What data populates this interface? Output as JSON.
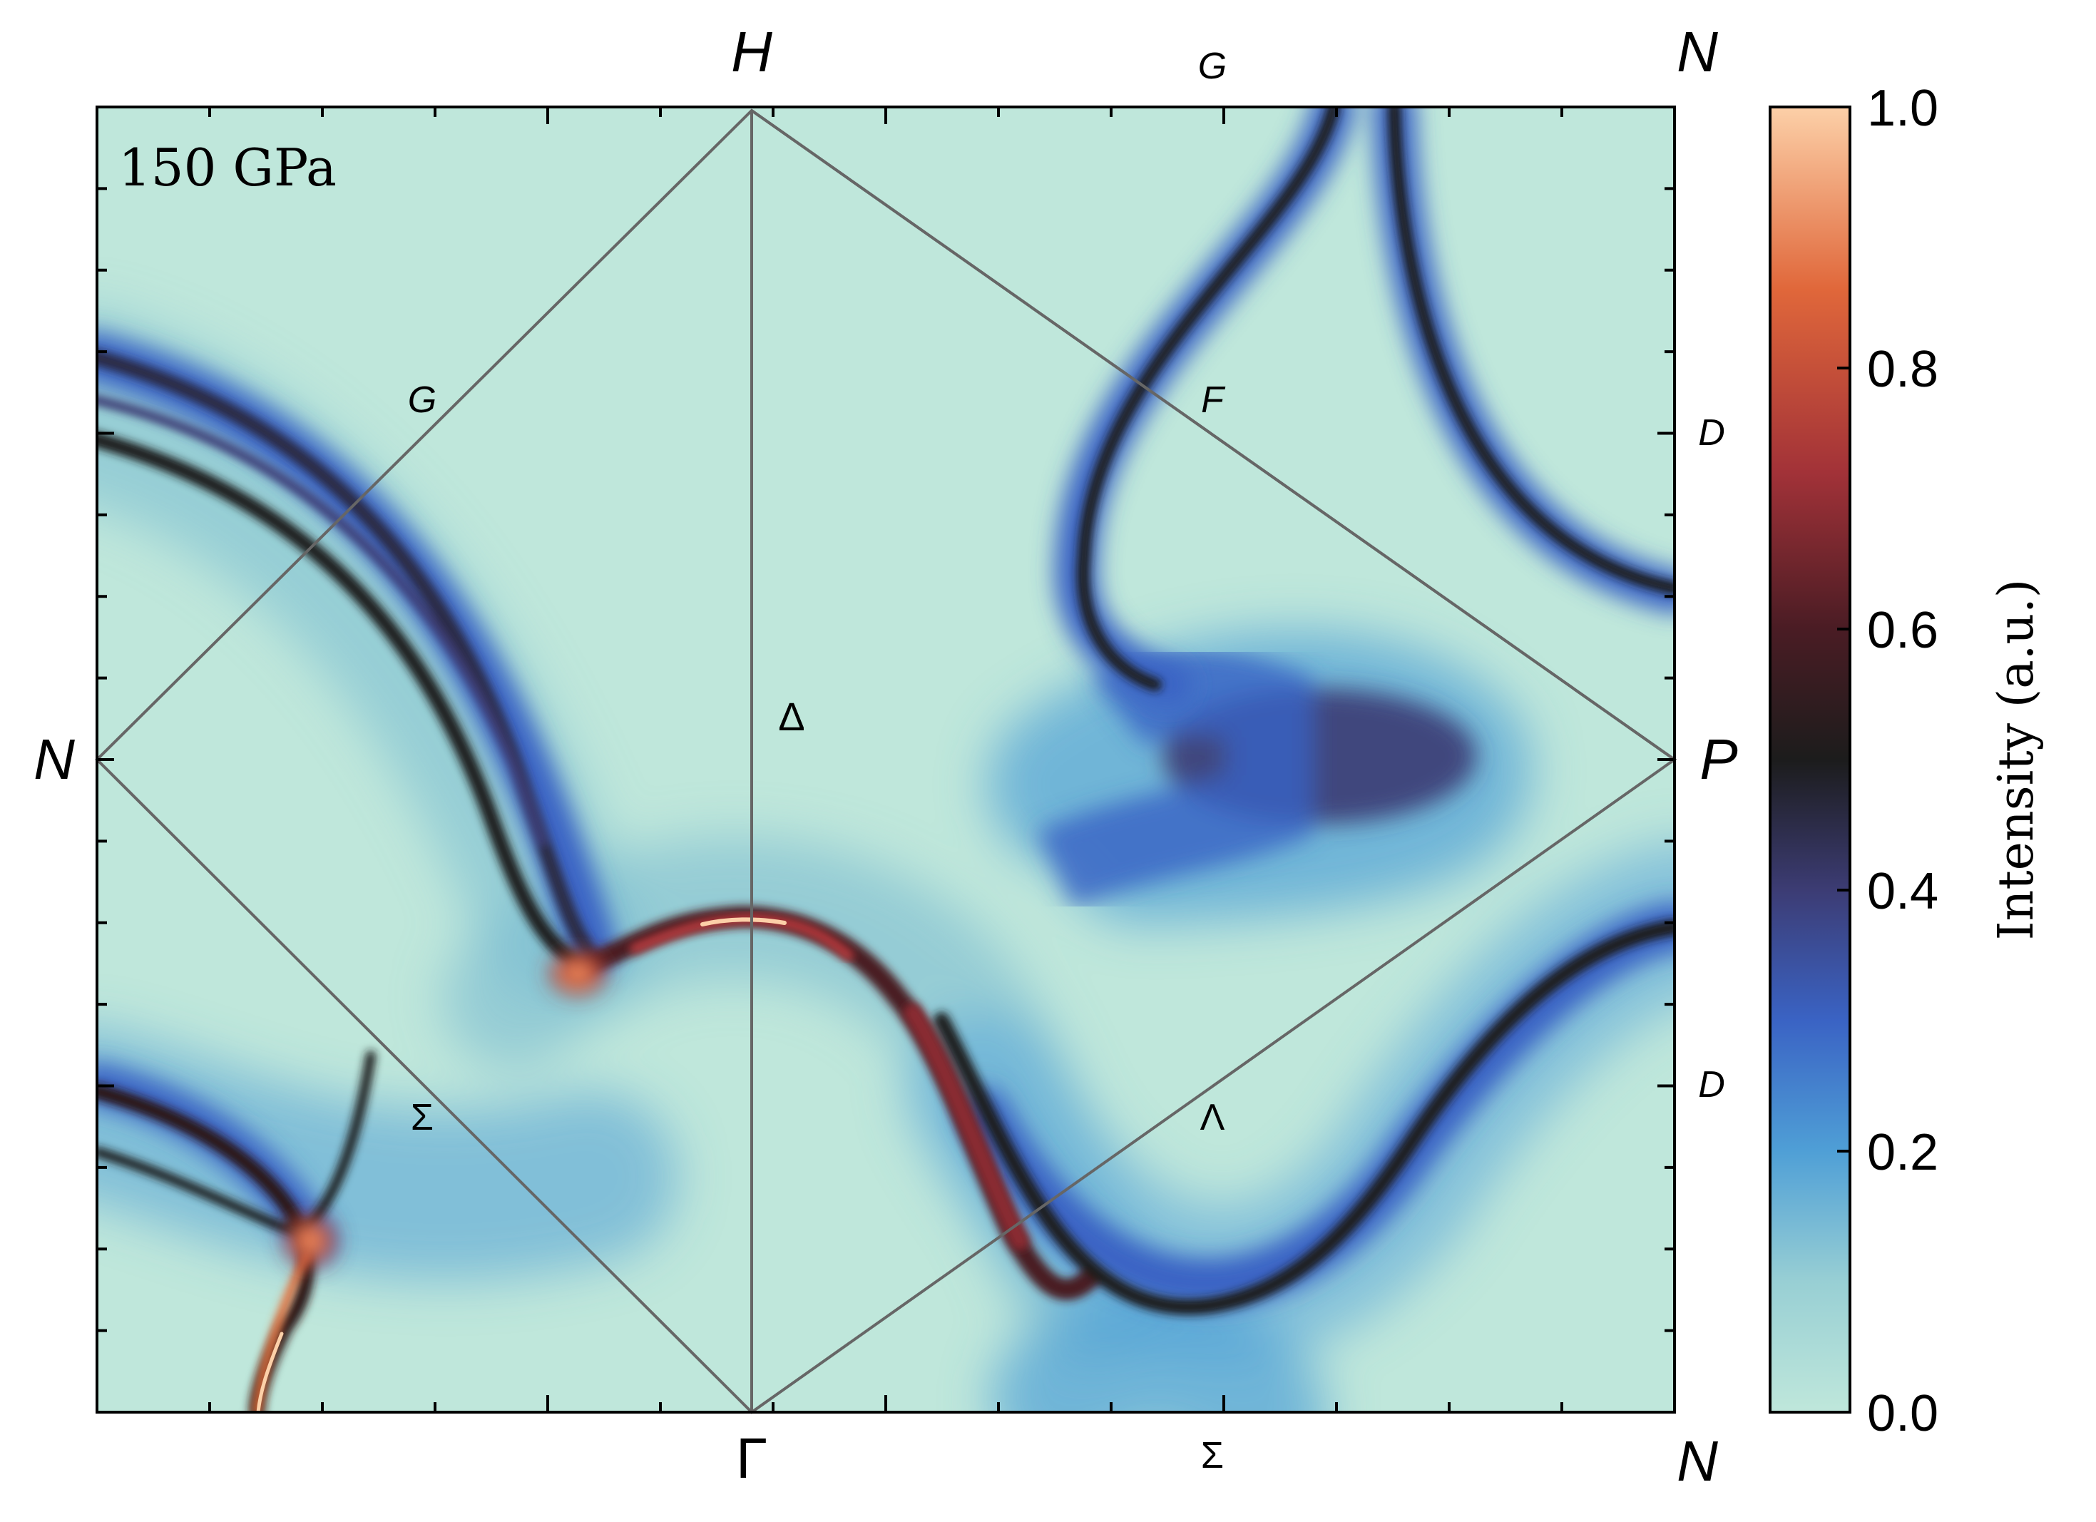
{
  "chart_data": {
    "type": "heatmap",
    "panel_label": "150 GPa",
    "colorbar": {
      "label": "Intensity (a.u.)",
      "range": [
        0.0,
        1.0
      ],
      "ticks": [
        "0.0",
        "0.2",
        "0.4",
        "0.6",
        "0.8",
        "1.0"
      ],
      "colors": [
        "#bfe7db",
        "#9fd3d6",
        "#4f9fd6",
        "#3a63c4",
        "#3a3a6e",
        "#1c1c1c",
        "#5b2027",
        "#b93b3e",
        "#e8713a",
        "#fcd0a8"
      ]
    },
    "high_symmetry_points": {
      "corner_top_left_hidden": "",
      "top_center": "H",
      "top_right": "N",
      "left_middle": "N",
      "right_middle": "P",
      "bottom_center": "Γ",
      "bottom_right": "N"
    },
    "path_labels": {
      "top_G": "G",
      "upper_left_G": "G",
      "upper_right_F": "F",
      "center_delta": "Δ",
      "lower_left_sigma": "Σ",
      "lower_right_lambda": "Λ",
      "bottom_sigma": "Σ",
      "right_D_upper": "D",
      "right_D_lower": "D"
    },
    "intensity_features": [
      {
        "name": "outer arc band",
        "intensity": 0.45
      },
      {
        "name": "inner arc band",
        "intensity": 0.35
      },
      {
        "name": "left saddle hotspot",
        "intensity": 0.75
      },
      {
        "name": "central Γ–H arch",
        "intensity": 0.95
      },
      {
        "name": "lower-left pocket hotspot",
        "intensity": 0.85
      },
      {
        "name": "P broad lobe",
        "intensity": 0.38
      },
      {
        "name": "upper-right curve",
        "intensity": 0.5
      },
      {
        "name": "far right curve",
        "intensity": 0.5
      },
      {
        "name": "lower-right valley band",
        "intensity": 0.55
      }
    ]
  }
}
